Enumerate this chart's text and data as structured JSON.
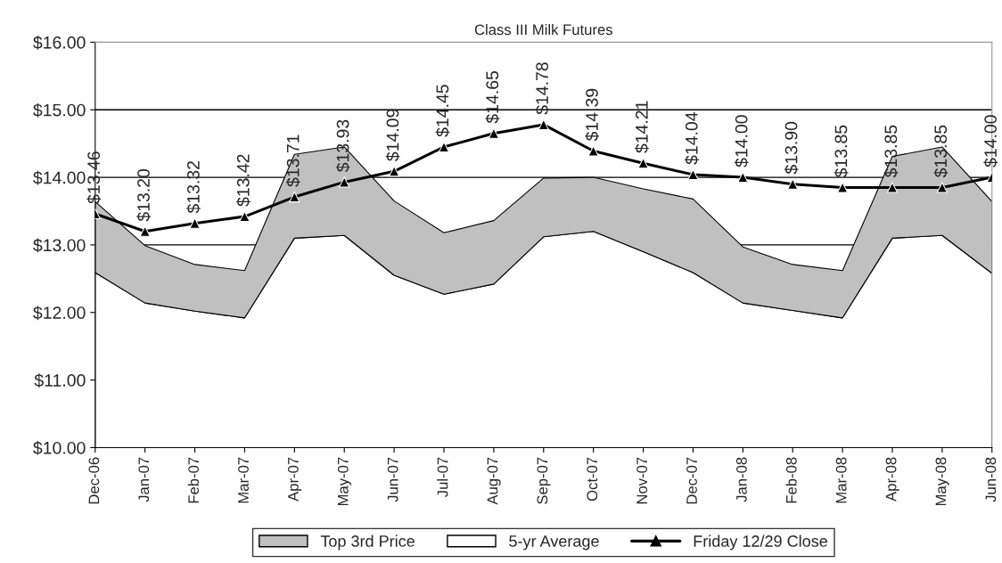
{
  "chart_data": {
    "type": "area",
    "title": "Class III Milk Futures",
    "categories": [
      "Dec-06",
      "Jan-07",
      "Feb-07",
      "Mar-07",
      "Apr-07",
      "May-07",
      "Jun-07",
      "Jul-07",
      "Aug-07",
      "Sep-07",
      "Oct-07",
      "Nov-07",
      "Dec-07",
      "Jan-08",
      "Feb-08",
      "Mar-08",
      "Apr-08",
      "May-08",
      "Jun-08"
    ],
    "series": [
      {
        "name": "5-yr Average",
        "color": "#ffffff",
        "values": [
          12.59,
          12.14,
          12.02,
          11.92,
          13.1,
          13.14,
          12.55,
          12.27,
          12.42,
          13.12,
          13.2,
          12.9,
          12.59,
          12.14,
          12.03,
          11.92,
          13.1,
          13.14,
          12.58
        ]
      },
      {
        "name": "Top 3rd Price",
        "color": "#c0c0c0",
        "values": [
          13.64,
          12.99,
          12.71,
          12.62,
          14.34,
          14.45,
          13.65,
          13.18,
          13.36,
          13.99,
          14.0,
          13.83,
          13.68,
          12.97,
          12.71,
          12.62,
          14.31,
          14.45,
          13.64
        ]
      },
      {
        "name": "Friday 12/29 Close",
        "type": "line",
        "color": "#000000",
        "marker": "triangle",
        "values": [
          13.46,
          13.2,
          13.32,
          13.42,
          13.71,
          13.93,
          14.09,
          14.45,
          14.65,
          14.78,
          14.39,
          14.21,
          14.04,
          14.0,
          13.9,
          13.85,
          13.85,
          13.85,
          14.0
        ],
        "value_labels": [
          "$13.46",
          "$13.20",
          "$13.32",
          "$13.42",
          "$13.71",
          "$13.93",
          "$14.09",
          "$14.45",
          "$14.65",
          "$14.78",
          "$14.39",
          "$14.21",
          "$14.04",
          "$14.00",
          "$13.90",
          "$13.85",
          "$13.85",
          "$13.85",
          "$14.00"
        ]
      }
    ],
    "ylim": [
      10,
      16
    ],
    "yticks": [
      {
        "value": 10,
        "label": "$10.00"
      },
      {
        "value": 11,
        "label": "$11.00"
      },
      {
        "value": 12,
        "label": "$12.00"
      },
      {
        "value": 13,
        "label": "$13.00"
      },
      {
        "value": 14,
        "label": "$14.00"
      },
      {
        "value": 15,
        "label": "$15.00"
      },
      {
        "value": 16,
        "label": "$16.00"
      }
    ],
    "grid": "y",
    "legend": "bottom"
  }
}
